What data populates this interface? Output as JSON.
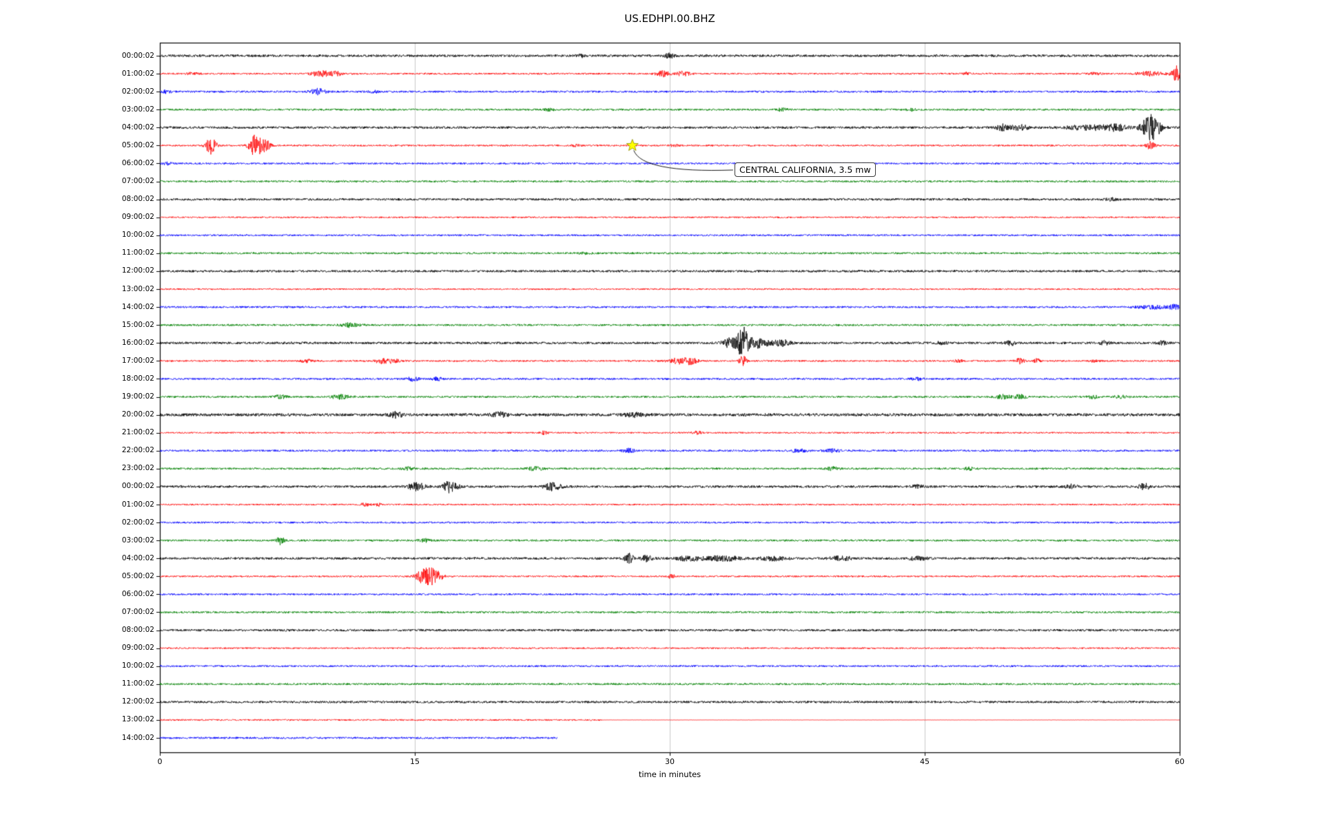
{
  "figure": {
    "title": "US.EDHPI.00.BHZ"
  },
  "chart_data": {
    "type": "line",
    "subtype": "helicorder-dayplot",
    "title": "US.EDHPI.00.BHZ",
    "xlabel": "time in minutes",
    "x_ticks": [
      0,
      15,
      30,
      45,
      60
    ],
    "xlim": [
      0,
      60
    ],
    "grid": "vertical-at-interior-ticks",
    "legend": "none",
    "palette": {
      "black": "#000000",
      "red": "#ff0000",
      "blue": "#0000ff",
      "green": "#008000"
    },
    "annotation": {
      "text": "CENTRAL CALIFORNIA, 3.5 mw",
      "row_label": "05:00:02",
      "row_index": 5,
      "minute": 27.8,
      "marker": "star",
      "marker_color": "#ffff00"
    },
    "rows": [
      {
        "label": "00:00:02",
        "color": "black",
        "na": 1.7,
        "bursts": [
          [
            24.8,
            1.2,
            0.25
          ],
          [
            30.0,
            1.8,
            0.3
          ]
        ]
      },
      {
        "label": "01:00:02",
        "color": "red",
        "na": 1.2,
        "bursts": [
          [
            2.0,
            1.5,
            0.4
          ],
          [
            9.5,
            3.5,
            0.6
          ],
          [
            10.4,
            2.5,
            0.3
          ],
          [
            29.6,
            3.5,
            0.4
          ],
          [
            30.8,
            3.0,
            0.35
          ],
          [
            47.5,
            1.5,
            0.25
          ],
          [
            55.0,
            1.2,
            0.4
          ],
          [
            58.3,
            2.5,
            0.8
          ],
          [
            59.8,
            9.0,
            0.25
          ]
        ]
      },
      {
        "label": "02:00:02",
        "color": "blue",
        "na": 1.4,
        "bursts": [
          [
            0.4,
            1.5,
            0.3
          ],
          [
            9.3,
            3.0,
            0.45
          ],
          [
            12.6,
            1.2,
            0.3
          ]
        ]
      },
      {
        "label": "03:00:02",
        "color": "green",
        "na": 1.4,
        "bursts": [
          [
            22.9,
            1.5,
            0.25
          ],
          [
            36.6,
            1.5,
            0.25
          ],
          [
            44.2,
            1.2,
            0.25
          ]
        ]
      },
      {
        "label": "04:00:02",
        "color": "black",
        "na": 1.7,
        "bursts": [
          [
            49.6,
            2.5,
            0.35
          ],
          [
            50.6,
            2.2,
            0.5
          ],
          [
            54.6,
            2.0,
            1.2
          ],
          [
            56.3,
            2.5,
            0.7
          ],
          [
            58.3,
            12.0,
            0.5
          ]
        ]
      },
      {
        "label": "05:00:02",
        "color": "red",
        "na": 1.2,
        "bursts": [
          [
            3.0,
            11.0,
            0.3
          ],
          [
            5.6,
            13.0,
            0.35
          ],
          [
            6.2,
            8.0,
            0.3
          ],
          [
            24.5,
            1.0,
            0.3
          ],
          [
            30.3,
            1.5,
            0.25
          ],
          [
            58.3,
            5.0,
            0.25
          ]
        ]
      },
      {
        "label": "06:00:02",
        "color": "blue",
        "na": 1.3,
        "bursts": [
          [
            0.4,
            1.2,
            0.3
          ]
        ]
      },
      {
        "label": "07:00:02",
        "color": "green",
        "na": 1.4,
        "bursts": []
      },
      {
        "label": "08:00:02",
        "color": "black",
        "na": 1.6,
        "bursts": [
          [
            56.0,
            1.0,
            0.4
          ]
        ]
      },
      {
        "label": "09:00:02",
        "color": "red",
        "na": 1.1,
        "bursts": []
      },
      {
        "label": "10:00:02",
        "color": "blue",
        "na": 1.3,
        "bursts": []
      },
      {
        "label": "11:00:02",
        "color": "green",
        "na": 1.4,
        "bursts": [
          [
            25.0,
            0.8,
            0.4
          ]
        ]
      },
      {
        "label": "12:00:02",
        "color": "black",
        "na": 1.6,
        "bursts": []
      },
      {
        "label": "13:00:02",
        "color": "red",
        "na": 1.1,
        "bursts": []
      },
      {
        "label": "14:00:02",
        "color": "blue",
        "na": 1.4,
        "bursts": [
          [
            58.5,
            1.5,
            1.0
          ],
          [
            59.7,
            2.0,
            0.3
          ]
        ]
      },
      {
        "label": "15:00:02",
        "color": "green",
        "na": 1.4,
        "bursts": [
          [
            11.2,
            2.0,
            0.5
          ]
        ]
      },
      {
        "label": "16:00:02",
        "color": "black",
        "na": 1.7,
        "bursts": [
          [
            33.6,
            4.0,
            0.5
          ],
          [
            34.3,
            12.0,
            0.3
          ],
          [
            35.1,
            4.0,
            0.7
          ],
          [
            36.6,
            2.5,
            0.5
          ],
          [
            46.0,
            1.2,
            0.3
          ],
          [
            50.0,
            2.0,
            0.3
          ],
          [
            55.6,
            1.5,
            0.3
          ],
          [
            59.0,
            1.5,
            0.3
          ]
        ]
      },
      {
        "label": "17:00:02",
        "color": "red",
        "na": 1.2,
        "bursts": [
          [
            8.6,
            2.5,
            0.35
          ],
          [
            13.1,
            3.0,
            0.45
          ],
          [
            13.8,
            2.5,
            0.3
          ],
          [
            30.6,
            3.5,
            0.7
          ],
          [
            31.3,
            2.5,
            0.35
          ],
          [
            34.3,
            7.0,
            0.2
          ],
          [
            47.0,
            1.5,
            0.25
          ],
          [
            50.6,
            3.5,
            0.25
          ],
          [
            51.6,
            2.5,
            0.2
          ],
          [
            55.0,
            1.2,
            0.3
          ]
        ]
      },
      {
        "label": "18:00:02",
        "color": "blue",
        "na": 1.4,
        "bursts": [
          [
            14.9,
            2.0,
            0.35
          ],
          [
            16.3,
            1.6,
            0.3
          ],
          [
            44.6,
            1.2,
            0.35
          ]
        ]
      },
      {
        "label": "19:00:02",
        "color": "green",
        "na": 1.4,
        "bursts": [
          [
            7.1,
            1.6,
            0.35
          ],
          [
            10.6,
            2.0,
            0.55
          ],
          [
            49.6,
            2.0,
            0.45
          ],
          [
            50.6,
            2.0,
            0.35
          ],
          [
            54.9,
            1.6,
            0.35
          ],
          [
            56.5,
            1.3,
            0.4
          ]
        ]
      },
      {
        "label": "20:00:02",
        "color": "black",
        "na": 2.1,
        "bursts": [
          [
            13.9,
            2.0,
            0.35
          ],
          [
            20.0,
            1.6,
            0.45
          ],
          [
            28.0,
            1.2,
            0.6
          ]
        ]
      },
      {
        "label": "21:00:02",
        "color": "red",
        "na": 1.1,
        "bursts": [
          [
            22.6,
            2.2,
            0.2
          ],
          [
            31.6,
            2.2,
            0.25
          ]
        ]
      },
      {
        "label": "22:00:02",
        "color": "blue",
        "na": 1.4,
        "bursts": [
          [
            27.6,
            2.0,
            0.35
          ],
          [
            37.6,
            1.6,
            0.45
          ],
          [
            39.6,
            1.6,
            0.45
          ]
        ]
      },
      {
        "label": "23:00:02",
        "color": "green",
        "na": 1.4,
        "bursts": [
          [
            14.6,
            1.6,
            0.35
          ],
          [
            22.1,
            2.0,
            0.45
          ],
          [
            39.6,
            2.0,
            0.35
          ],
          [
            47.6,
            2.0,
            0.25
          ]
        ]
      },
      {
        "label": "00:00:02",
        "color": "black",
        "na": 1.7,
        "bursts": [
          [
            15.1,
            3.0,
            0.5
          ],
          [
            17.1,
            5.0,
            0.45
          ],
          [
            23.1,
            3.0,
            0.5
          ],
          [
            44.6,
            1.2,
            0.35
          ],
          [
            53.6,
            1.6,
            0.35
          ],
          [
            57.9,
            3.0,
            0.3
          ]
        ]
      },
      {
        "label": "01:00:02",
        "color": "red",
        "na": 1.1,
        "bursts": [
          [
            12.1,
            2.5,
            0.25
          ],
          [
            12.9,
            2.0,
            0.2
          ]
        ]
      },
      {
        "label": "02:00:02",
        "color": "blue",
        "na": 1.3,
        "bursts": []
      },
      {
        "label": "03:00:02",
        "color": "green",
        "na": 1.4,
        "bursts": [
          [
            7.1,
            4.5,
            0.2
          ],
          [
            15.6,
            1.6,
            0.35
          ]
        ]
      },
      {
        "label": "04:00:02",
        "color": "black",
        "na": 1.7,
        "bursts": [
          [
            27.6,
            4.5,
            0.25
          ],
          [
            28.6,
            2.5,
            0.35
          ],
          [
            31.1,
            2.0,
            0.7
          ],
          [
            33.1,
            2.0,
            1.0
          ],
          [
            36.1,
            1.6,
            0.8
          ],
          [
            40.1,
            1.6,
            0.7
          ],
          [
            44.6,
            1.6,
            0.5
          ]
        ]
      },
      {
        "label": "05:00:02",
        "color": "red",
        "na": 1.2,
        "bursts": [
          [
            15.4,
            8.0,
            0.35
          ],
          [
            15.9,
            10.0,
            0.3
          ],
          [
            16.4,
            6.0,
            0.3
          ],
          [
            30.1,
            2.5,
            0.2
          ]
        ]
      },
      {
        "label": "06:00:02",
        "color": "blue",
        "na": 1.3,
        "bursts": []
      },
      {
        "label": "07:00:02",
        "color": "green",
        "na": 1.4,
        "bursts": []
      },
      {
        "label": "08:00:02",
        "color": "black",
        "na": 1.6,
        "bursts": []
      },
      {
        "label": "09:00:02",
        "color": "red",
        "na": 1.1,
        "bursts": []
      },
      {
        "label": "10:00:02",
        "color": "blue",
        "na": 1.3,
        "bursts": []
      },
      {
        "label": "11:00:02",
        "color": "green",
        "na": 1.4,
        "bursts": []
      },
      {
        "label": "12:00:02",
        "color": "black",
        "na": 1.6,
        "bursts": []
      },
      {
        "label": "13:00:02",
        "color": "red",
        "na": 1.1,
        "bursts": [],
        "segments": [
          [
            0,
            26,
            1.0
          ],
          [
            26,
            60,
            0.15
          ]
        ]
      },
      {
        "label": "14:00:02",
        "color": "blue",
        "na": 1.4,
        "bursts": [],
        "end_minute": 23.4
      }
    ]
  }
}
